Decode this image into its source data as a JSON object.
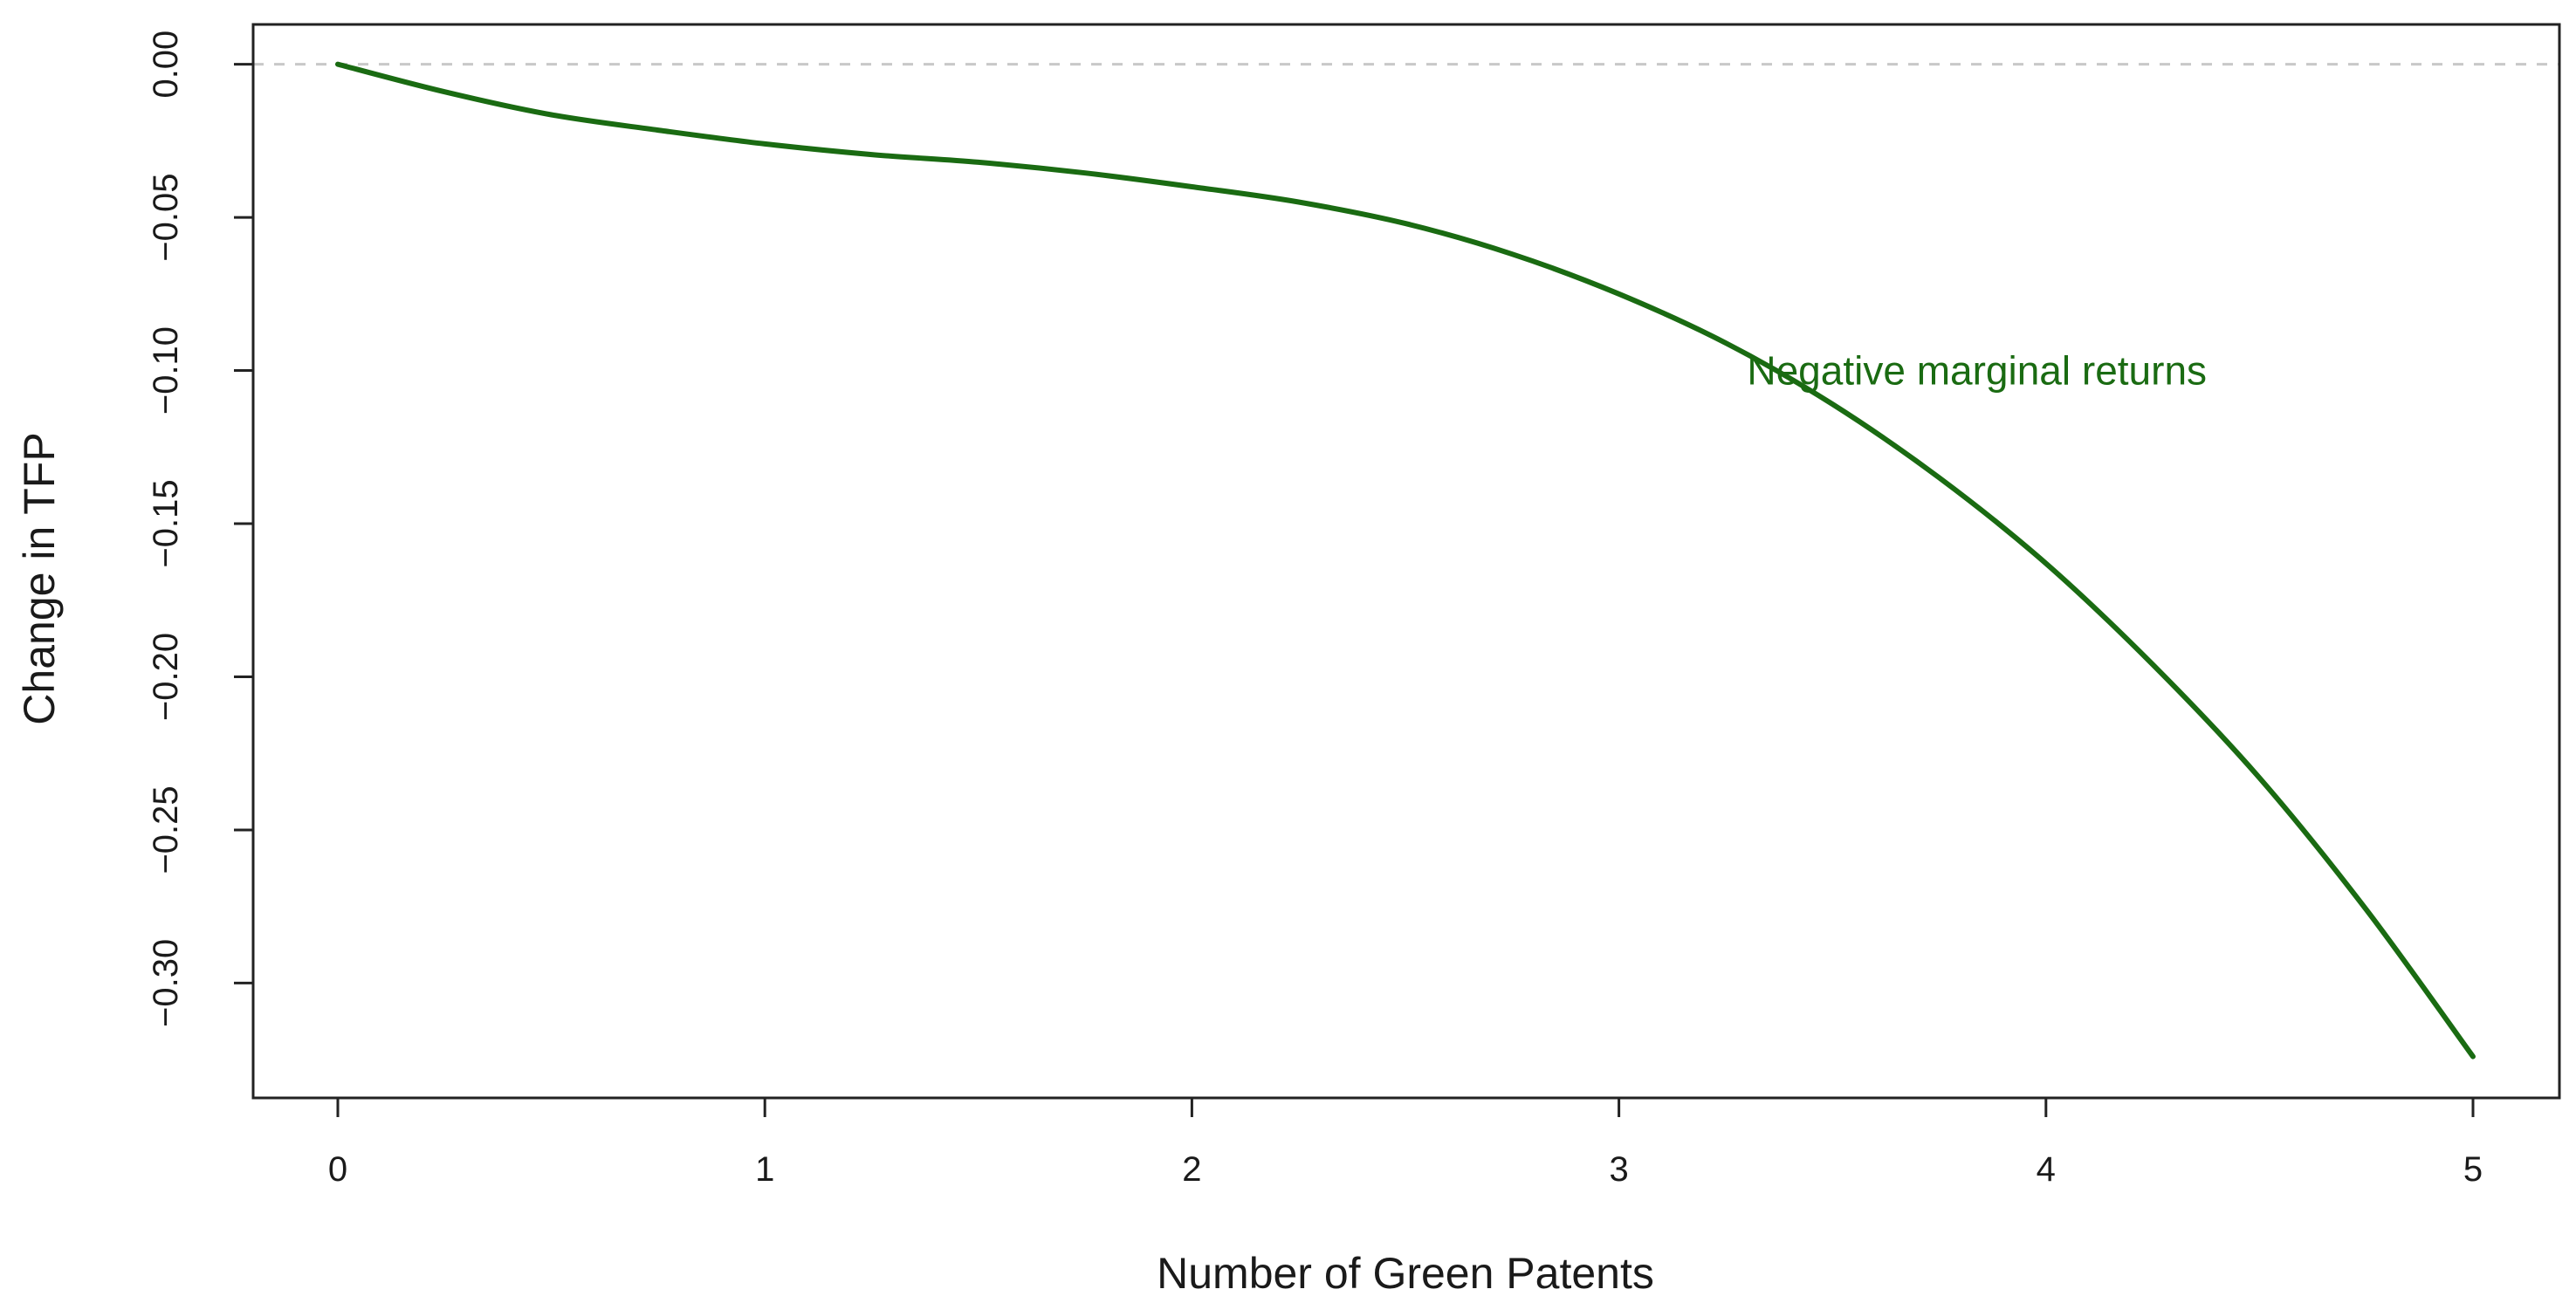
{
  "chart_data": {
    "type": "line",
    "title": "",
    "xlabel": "Number of Green Patents",
    "ylabel": "Change in TFP",
    "xlim": [
      0,
      5
    ],
    "ylim": [
      -0.3375,
      0.013
    ],
    "x_ticks": [
      0,
      1,
      2,
      3,
      4,
      5
    ],
    "y_ticks": [
      0.0,
      -0.05,
      -0.1,
      -0.15,
      -0.2,
      -0.25,
      -0.3
    ],
    "y_tick_labels": [
      "0.00",
      "−0.05",
      "−0.10",
      "−0.15",
      "−0.20",
      "−0.25",
      "−0.30"
    ],
    "x_tick_labels": [
      "0",
      "1",
      "2",
      "3",
      "4",
      "5"
    ],
    "grid": false,
    "reference_line": {
      "y": 0,
      "style": "dashed",
      "color": "#c8c8c8"
    },
    "series": [
      {
        "color": "#1a6b12",
        "x": [
          0,
          0.25,
          0.5,
          0.75,
          1,
          1.25,
          1.5,
          1.75,
          2,
          2.25,
          2.5,
          2.75,
          3,
          3.25,
          3.5,
          3.75,
          4,
          4.25,
          4.5,
          4.75,
          5
        ],
        "y": [
          0,
          -0.009,
          -0.0165,
          -0.0215,
          -0.026,
          -0.0295,
          -0.032,
          -0.0355,
          -0.04,
          -0.045,
          -0.052,
          -0.062,
          -0.075,
          -0.091,
          -0.111,
          -0.135,
          -0.163,
          -0.196,
          -0.233,
          -0.276,
          -0.324
        ]
      }
    ],
    "annotations": [
      {
        "text": "Negative marginal returns",
        "x": 3.3,
        "y": -0.1,
        "color": "#1a6b12"
      }
    ]
  }
}
